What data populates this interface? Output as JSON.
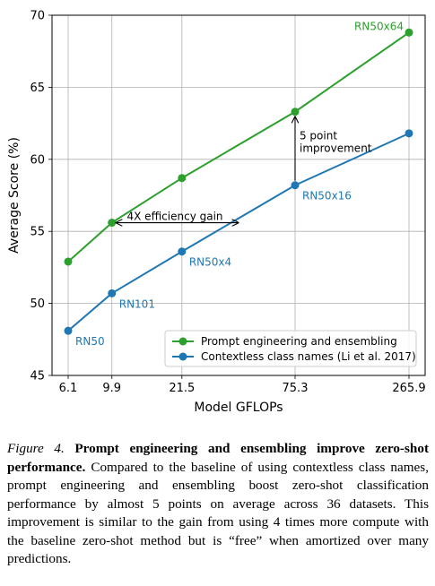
{
  "chart_data": {
    "type": "line",
    "xlabel": "Model GFLOPs",
    "ylabel": "Average Score (%)",
    "x_scale": "log",
    "x": [
      6.1,
      9.9,
      21.5,
      75.3,
      265.9
    ],
    "xtick_labels": [
      "6.1",
      "9.9",
      "21.5",
      "75.3",
      "265.9"
    ],
    "ylim": [
      45,
      70
    ],
    "yticks": [
      45,
      50,
      55,
      60,
      65,
      70
    ],
    "grid": true,
    "legend_position": "lower-right",
    "series": [
      {
        "name": "Prompt engineering and ensembling",
        "color": "#2ca02c",
        "values": [
          52.9,
          55.6,
          58.7,
          63.3,
          68.8
        ],
        "point_labels": [
          "",
          "",
          "",
          "",
          "RN50x64"
        ]
      },
      {
        "name": "Contextless class names (Li et al. 2017)",
        "color": "#1f77b4",
        "values": [
          48.1,
          50.7,
          53.6,
          58.2,
          61.8
        ],
        "point_labels": [
          "RN50",
          "RN101",
          "RN50x4",
          "RN50x16",
          ""
        ]
      }
    ],
    "annotations": [
      {
        "text": "4X efficiency gain",
        "type": "double-arrow",
        "from": [
          9.9,
          55.6
        ],
        "to": [
          40.0,
          55.6
        ]
      },
      {
        "text_lines": [
          "5 point",
          "improvement"
        ],
        "type": "arrow",
        "from": [
          75.3,
          58.2
        ],
        "to": [
          75.3,
          63.3
        ]
      }
    ]
  },
  "caption": {
    "label": "Figure 4.",
    "bold": "Prompt engineering and ensembling improve zero-shot performance.",
    "text": "Compared to the baseline of using contextless class names, prompt engineering and ensembling boost zero-shot classification performance by almost 5 points on average across 36 datasets. This improvement is similar to the gain from using 4 times more compute with the baseline zero-shot method but is “free” when amortized over many predictions."
  }
}
